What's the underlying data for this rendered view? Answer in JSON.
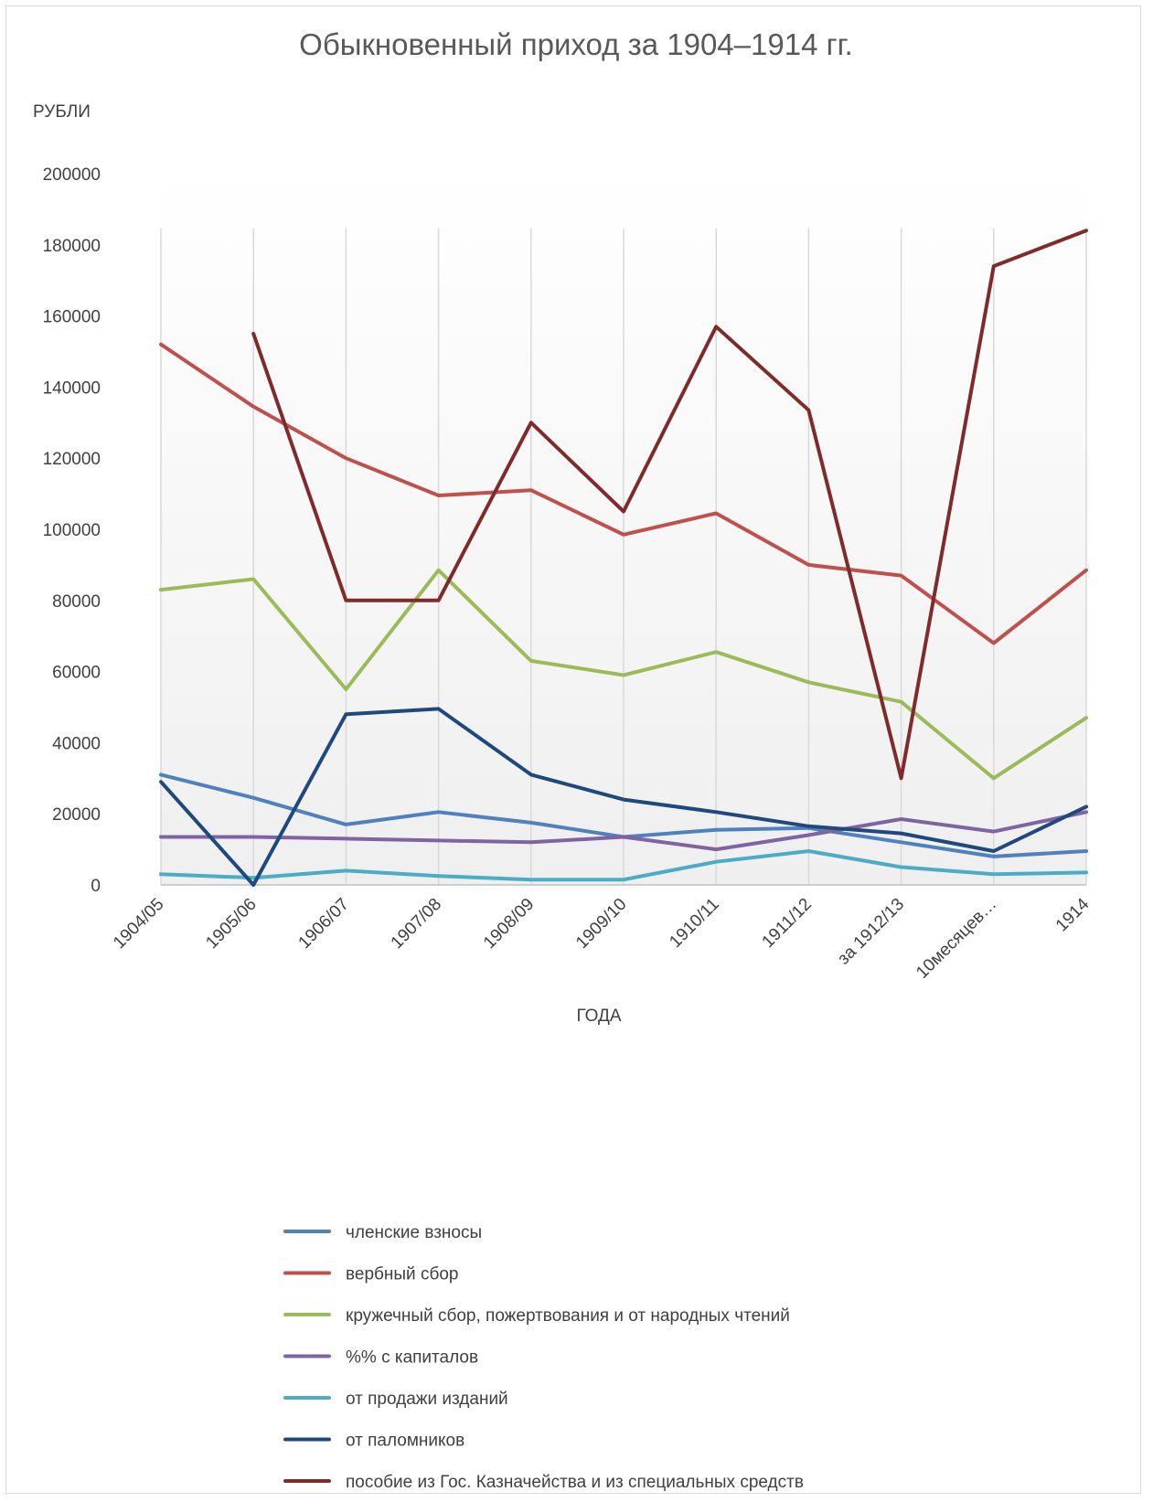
{
  "chart_data": {
    "type": "line",
    "title": "Обыкновенный приход за 1904–1914 гг.",
    "xlabel": "ГОДА",
    "ylabel": "РУБЛИ",
    "ylim": [
      0,
      200000
    ],
    "yticks": [
      "0",
      "20000",
      "40000",
      "60000",
      "80000",
      "100000",
      "120000",
      "140000",
      "160000",
      "180000",
      "200000"
    ],
    "categories": [
      "1904/05",
      "1905/06",
      "1906/07",
      "1907/08",
      "1908/09",
      "1909/10",
      "1910/11",
      "1911/12",
      "за 1912/13",
      "10месяцев…",
      "1914"
    ],
    "grid": "vertical",
    "legend_position": "bottom",
    "series": [
      {
        "name": "членские взносы",
        "color": "#4f81bd",
        "values": [
          31000,
          24500,
          17000,
          20500,
          17500,
          13500,
          15500,
          16000,
          12000,
          8000,
          9500
        ]
      },
      {
        "name": "вербный сбор",
        "color": "#c0504d",
        "values": [
          152000,
          134500,
          120000,
          109500,
          111000,
          98500,
          104500,
          90000,
          87000,
          68000,
          88500
        ]
      },
      {
        "name": "кружечный сбор, пожертвования и от народных чтений",
        "color": "#9bbb59",
        "values": [
          83000,
          86000,
          55000,
          88500,
          63000,
          59000,
          65500,
          57000,
          51500,
          30000,
          47000
        ]
      },
      {
        "name": "%% с капиталов",
        "color": "#8064a2",
        "values": [
          13500,
          13500,
          13000,
          12500,
          12000,
          13500,
          10000,
          14000,
          18500,
          15000,
          20500
        ]
      },
      {
        "name": "от продажи изданий",
        "color": "#4bacc6",
        "values": [
          3000,
          2000,
          4000,
          2500,
          1500,
          1500,
          6500,
          9500,
          5000,
          3000,
          3500
        ]
      },
      {
        "name": "от паломников",
        "color": "#1f497d",
        "values": [
          29000,
          0,
          48000,
          49500,
          31000,
          24000,
          20500,
          16500,
          14500,
          9500,
          22000
        ]
      },
      {
        "name": "пособие из Гос. Казначейства и из специальных средств",
        "color": "#7f2b2b",
        "values": [
          null,
          155000,
          80000,
          80000,
          130000,
          105000,
          157000,
          133500,
          30000,
          174000,
          184000
        ]
      }
    ]
  }
}
